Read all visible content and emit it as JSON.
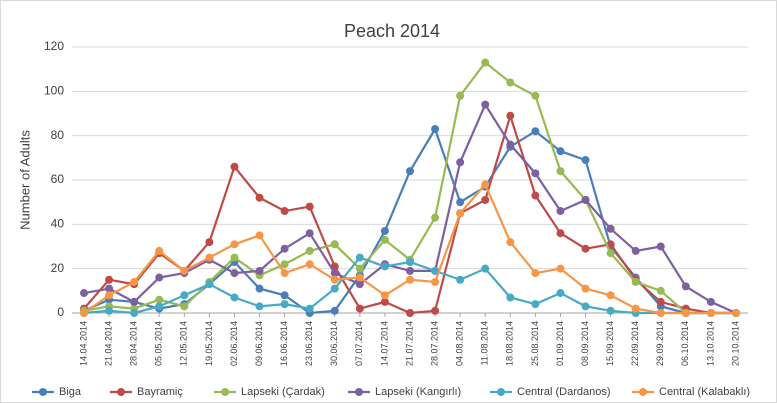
{
  "chart_data": {
    "type": "line",
    "title": "Peach 2014",
    "y_label": "Number of Adults",
    "categories": [
      "14.04.2014",
      "21.04.2014",
      "28.04.2014",
      "05.05.2014",
      "12.05.2014",
      "19.05.2014",
      "02.06.2014",
      "09.06.2014",
      "16.06.2014",
      "23.06.2014",
      "30.06.2014",
      "07.07.2014",
      "14.07.2014",
      "21.07.2014",
      "28.07.2014",
      "04.08.2014",
      "11.08.2014",
      "18.08.2014",
      "25.08.2014",
      "01.09.2014",
      "08.09.2014",
      "15.09.2014",
      "22.09.2014",
      "29.09.2014",
      "06.10.2014",
      "13.10.2014",
      "20.10.2014"
    ],
    "series": [
      {
        "name": "Biga",
        "color": "#4a7ebb",
        "values": [
          1,
          6,
          5,
          2,
          4,
          13,
          23,
          11,
          8,
          0,
          1,
          17,
          37,
          64,
          83,
          50,
          57,
          75,
          82,
          73,
          69,
          30,
          16,
          3,
          0,
          0,
          0
        ]
      },
      {
        "name": "Bayramiç",
        "color": "#be4b48",
        "values": [
          2,
          15,
          13,
          27,
          19,
          32,
          66,
          52,
          46,
          48,
          21,
          2,
          5,
          0,
          1,
          45,
          51,
          89,
          53,
          36,
          29,
          31,
          15,
          5,
          2,
          0,
          0
        ]
      },
      {
        "name": "Lapseki (Çardak)",
        "color": "#98b954",
        "values": [
          1,
          3,
          2,
          6,
          3,
          14,
          25,
          17,
          22,
          28,
          31,
          20,
          33,
          24,
          43,
          98,
          113,
          104,
          98,
          64,
          51,
          27,
          14,
          10,
          0,
          0,
          0
        ]
      },
      {
        "name": "Lapseki (Kangırlı)",
        "color": "#7d60a0",
        "values": [
          9,
          11,
          5,
          16,
          18,
          24,
          18,
          19,
          29,
          36,
          18,
          13,
          22,
          19,
          19,
          68,
          94,
          76,
          63,
          46,
          51,
          38,
          28,
          30,
          12,
          5,
          0
        ]
      },
      {
        "name": "Central (Dardanos)",
        "color": "#46aac5",
        "values": [
          0,
          1,
          0,
          3,
          8,
          13,
          7,
          3,
          4,
          2,
          11,
          25,
          21,
          23,
          19,
          15,
          20,
          7,
          4,
          9,
          3,
          1,
          0,
          0,
          0,
          0,
          0
        ]
      },
      {
        "name": "Central (Kalabaklı)",
        "color": "#f79646",
        "values": [
          0,
          8,
          14,
          28,
          19,
          25,
          31,
          35,
          18,
          22,
          15,
          16,
          8,
          15,
          14,
          45,
          58,
          32,
          18,
          20,
          11,
          8,
          2,
          0,
          0,
          0,
          0
        ]
      }
    ],
    "ylim": [
      0,
      120
    ],
    "yticks": [
      0,
      20,
      40,
      60,
      80,
      100,
      120
    ],
    "grid": true,
    "legend": "bottom"
  }
}
